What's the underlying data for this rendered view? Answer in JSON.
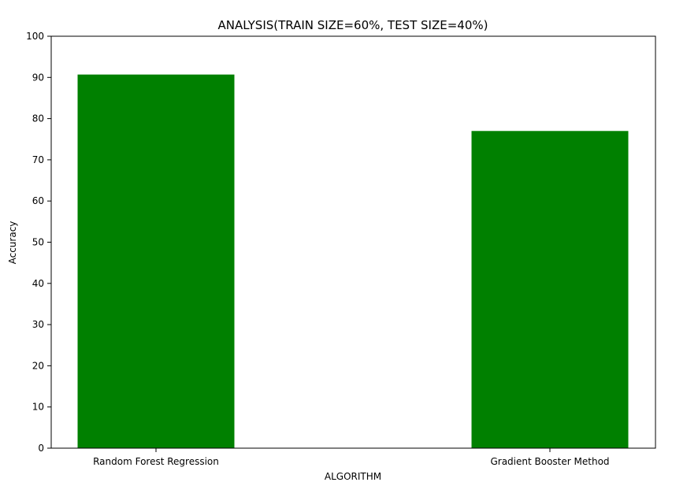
{
  "chart_data": {
    "type": "bar",
    "title": "ANALYSIS(TRAIN SIZE=60%, TEST SIZE=40%)",
    "xlabel": "ALGORITHM",
    "ylabel": "Accuracy",
    "categories": [
      "Random Forest Regression",
      "Gradient Booster Method"
    ],
    "values": [
      90.7,
      77.0
    ],
    "ylim": [
      0,
      100
    ],
    "yticks": [
      0,
      10,
      20,
      30,
      40,
      50,
      60,
      70,
      80,
      90,
      100
    ],
    "ytick_labels": [
      "0",
      "10",
      "20",
      "30",
      "40",
      "50",
      "60",
      "70",
      "80",
      "90",
      "100"
    ],
    "bar_color": "#008000",
    "grid": false,
    "legend": "none"
  }
}
